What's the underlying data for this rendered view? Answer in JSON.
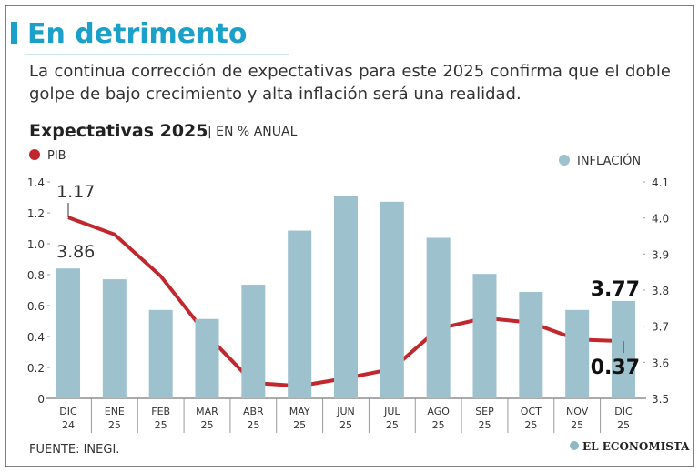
{
  "header": {
    "title": "En detrimento",
    "subtitle": "La continua corrección de expectativas para este 2025 confirma que el doble golpe de bajo crecimiento y alta inflación será una realidad."
  },
  "chart_data": {
    "type": "bar-line",
    "title": "Expectativas 2025",
    "unit": "| EN % ANUAL",
    "categories": [
      [
        "DIC",
        "24"
      ],
      [
        "ENE",
        "25"
      ],
      [
        "FEB",
        "25"
      ],
      [
        "MAR",
        "25"
      ],
      [
        "ABR",
        "25"
      ],
      [
        "MAY",
        "25"
      ],
      [
        "JUN",
        "25"
      ],
      [
        "JUL",
        "25"
      ],
      [
        "AGO",
        "25"
      ],
      [
        "SEP",
        "25"
      ],
      [
        "OCT",
        "25"
      ],
      [
        "NOV",
        "25"
      ],
      [
        "DIC",
        "25"
      ]
    ],
    "series": [
      {
        "name": "PIB",
        "color": "#c1272d",
        "type": "line",
        "axis": "y",
        "values": [
          1.17,
          1.06,
          0.79,
          0.41,
          0.1,
          0.08,
          0.13,
          0.19,
          0.45,
          0.52,
          0.49,
          0.38,
          0.37
        ],
        "value_labels": [
          "1.17",
          null,
          null,
          null,
          null,
          null,
          null,
          null,
          null,
          null,
          null,
          null,
          "0.37"
        ]
      },
      {
        "name": "INFLACIÓN",
        "color": "#9dc2cd",
        "type": "bar",
        "axis": "y2",
        "values": [
          3.86,
          3.83,
          3.745,
          3.72,
          3.815,
          3.965,
          4.06,
          4.045,
          3.945,
          3.845,
          3.795,
          3.745,
          3.77
        ],
        "value_labels": [
          "3.86",
          null,
          null,
          null,
          null,
          null,
          null,
          null,
          null,
          null,
          null,
          null,
          "3.77"
        ]
      }
    ],
    "ylim": [
      0,
      1.4
    ],
    "yticks": [
      0,
      0.2,
      0.4,
      0.6,
      0.8,
      {
        "value": 1,
        "label": "1.0"
      },
      1.2,
      1.4
    ],
    "y2lim": [
      3.5,
      4.1
    ],
    "y2ticks": [
      3.5,
      3.6,
      3.7,
      3.8,
      3.9,
      {
        "value": 4,
        "label": "4.0"
      },
      4.1
    ],
    "source": "FUENTE: INEGI.",
    "logo": "EL ECONOMISTA"
  }
}
